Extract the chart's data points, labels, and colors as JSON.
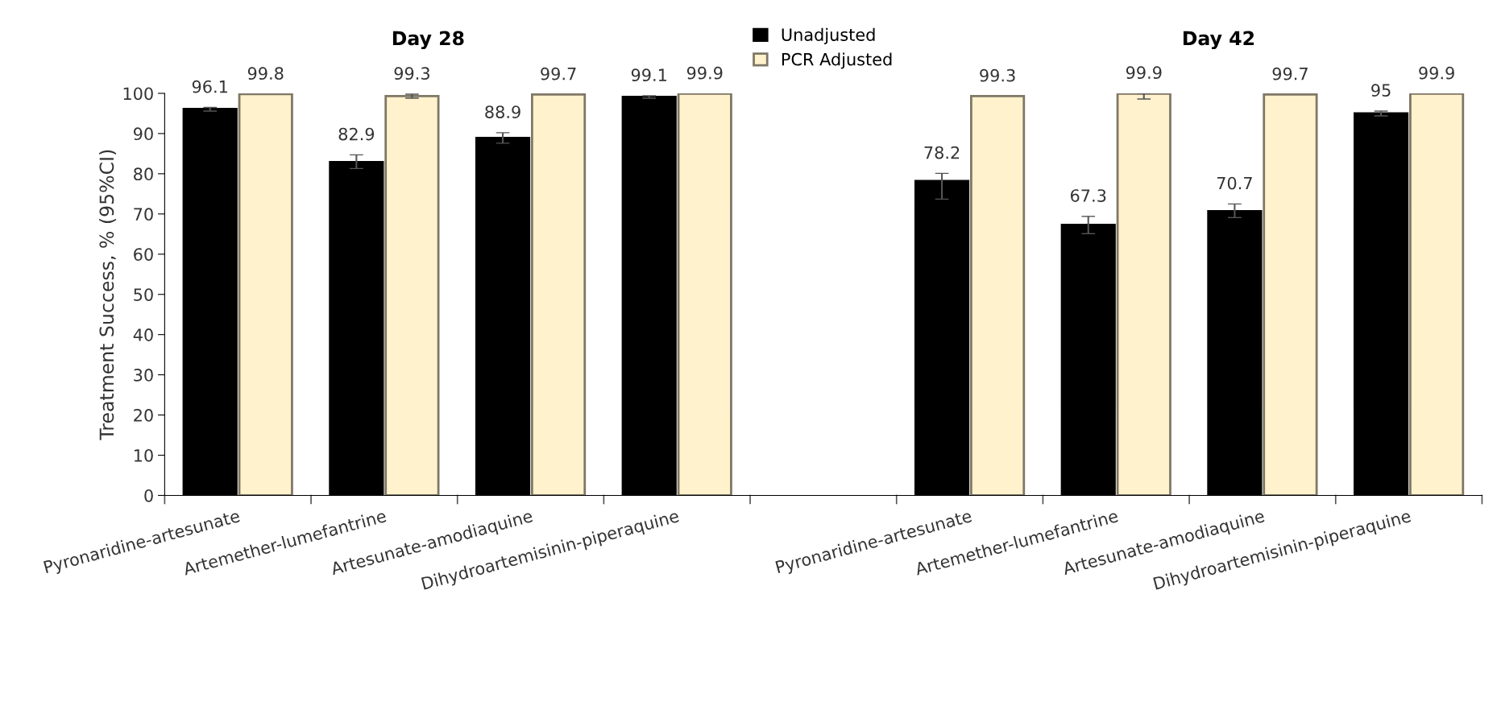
{
  "chart_data": {
    "type": "bar",
    "ylabel": "Treatment Success, % (95%CI)",
    "annotations": [
      "Day 28",
      "Day 42"
    ],
    "categories": [
      "Pyronaridine-artesunate",
      "Artemether-lumefantrine",
      "Artesunate-amodiaquine",
      "Dihydroartemisinin-piperaquine",
      null,
      "Pyronaridine-artesunate",
      "Artemether-lumefantrine",
      "Artesunate-amodiaquine",
      "Dihydroartemisinin-piperaquine"
    ],
    "series": [
      {
        "name": "Unadjusted",
        "color": "#000000",
        "values": [
          96.1,
          82.9,
          88.9,
          99.1,
          null,
          78.2,
          67.3,
          70.7,
          95
        ],
        "errors": [
          [
            95.6,
            96.5
          ],
          [
            81.3,
            84.7
          ],
          [
            87.6,
            90.2
          ],
          [
            98.8,
            99.4
          ],
          null,
          [
            73.7,
            80.1
          ],
          [
            65.1,
            69.4
          ],
          [
            69.1,
            72.5
          ],
          [
            94.4,
            95.6
          ]
        ]
      },
      {
        "name": "PCR Adjusted",
        "color": "#fff2cc",
        "values": [
          99.8,
          99.3,
          99.7,
          99.9,
          null,
          99.3,
          99.9,
          99.7,
          99.9
        ],
        "errors": [
          null,
          [
            98.8,
            99.8
          ],
          null,
          null,
          null,
          null,
          [
            98.6,
            100
          ],
          null,
          null
        ]
      }
    ],
    "ylim": [
      0,
      100
    ],
    "yticks": [
      0,
      10,
      20,
      30,
      40,
      50,
      60,
      70,
      80,
      90,
      100
    ],
    "data_labels": true,
    "grid": false,
    "legend": "top"
  }
}
